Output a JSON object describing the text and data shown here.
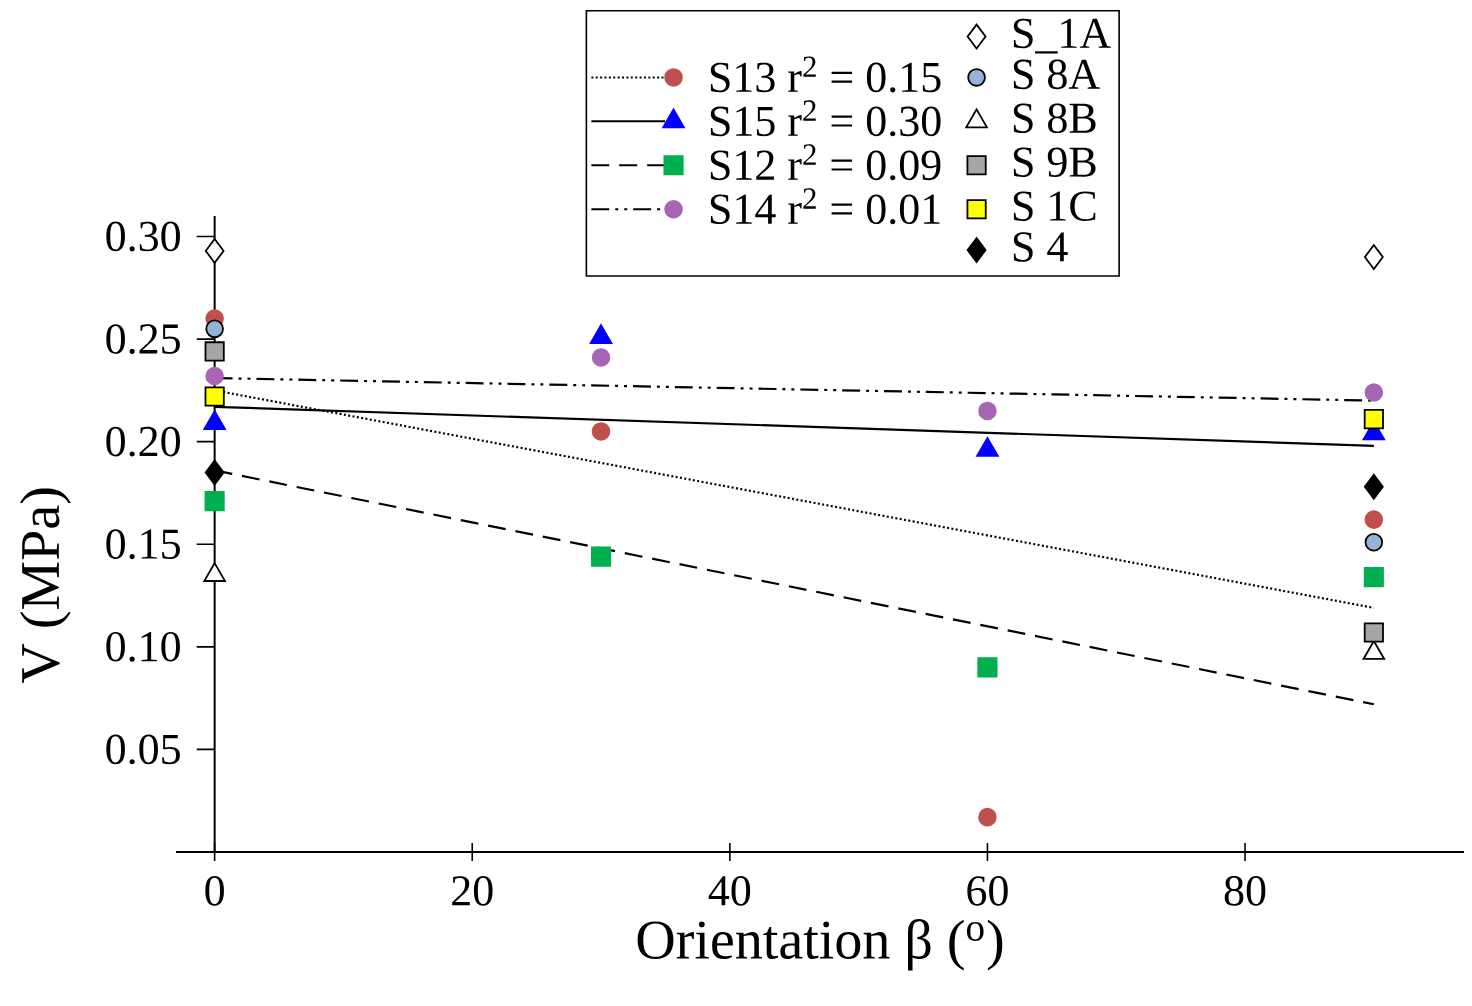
{
  "chart_data": {
    "type": "scatter",
    "xlabel": "Orientation β ($^{o}$)",
    "ylabel": "V (MPa)",
    "xlim": [
      -3,
      97
    ],
    "ylim": [
      0,
      0.31
    ],
    "xticks": [
      0,
      20,
      40,
      60,
      80
    ],
    "yticks": [
      0.05,
      {
        "value": 0.1,
        "label": "0.10"
      },
      0.15,
      {
        "value": 0.2,
        "label": "0.20"
      },
      0.25,
      {
        "value": 0.3,
        "label": "0.30"
      }
    ],
    "legend": "top",
    "grid": false,
    "series": [
      {
        "name": "S13 r$^{2}$ = 0.15",
        "color": "#c0504d",
        "marker": "circle",
        "x": [
          0,
          30,
          60,
          90
        ],
        "values": [
          0.26,
          0.205,
          0.017,
          0.162
        ]
      },
      {
        "type": "line",
        "color": "#000000",
        "line_style": "dotted",
        "x": [
          0,
          90
        ],
        "values": [
          0.225,
          0.119
        ]
      },
      {
        "name": "S15 r$^{2}$ = 0.30",
        "color": "#0000ff",
        "marker": "triangle",
        "x": [
          0,
          30,
          60,
          90
        ],
        "values": [
          0.209,
          0.251,
          0.196,
          0.204
        ]
      },
      {
        "type": "line",
        "color": "#000000",
        "line_style": "solid",
        "x": [
          0,
          90
        ],
        "values": [
          0.217,
          0.198
        ]
      },
      {
        "name": "S12 r$^{2}$ = 0.09",
        "color": "#00b050",
        "marker": "square",
        "x": [
          0,
          30,
          60,
          90
        ],
        "values": [
          0.171,
          0.144,
          0.09,
          0.134
        ]
      },
      {
        "type": "line",
        "color": "#000000",
        "line_style": "dashed",
        "x": [
          0,
          90
        ],
        "values": [
          0.186,
          0.072
        ]
      },
      {
        "name": "S14 r$^{2}$ = 0.01",
        "color": "#a865b5",
        "marker": "circle",
        "x": [
          0,
          30,
          60,
          90
        ],
        "values": [
          0.232,
          0.241,
          0.215,
          0.224
        ]
      },
      {
        "type": "line",
        "color": "#000000",
        "line_style": "dashdotdotted",
        "x": [
          0,
          90
        ],
        "values": [
          0.231,
          0.22
        ]
      },
      {
        "name": "S_1A",
        "color": "#ffffff",
        "marker": "diamond",
        "x": [
          0,
          90
        ],
        "values": [
          0.293,
          0.29
        ]
      },
      {
        "name": "S 8A",
        "color": "#95b3d7",
        "marker": "circle",
        "x": [
          0,
          90
        ],
        "values": [
          0.255,
          0.151
        ]
      },
      {
        "name": "S 8B",
        "color": "#ffffff",
        "marker": "triangle",
        "x": [
          0,
          90
        ],
        "values": [
          0.135,
          0.097
        ]
      },
      {
        "name": "S 9B",
        "color": "#a6a6a6",
        "marker": "square",
        "x": [
          0,
          90
        ],
        "values": [
          0.244,
          0.107
        ]
      },
      {
        "name": "S 1C",
        "color": "#ffff00",
        "marker": "square",
        "x": [
          0,
          90
        ],
        "values": [
          0.222,
          0.211
        ]
      },
      {
        "name": "S 4",
        "color": "#000000",
        "marker": "diamond",
        "x": [
          0,
          90
        ],
        "values": [
          0.185,
          0.178
        ]
      }
    ]
  }
}
